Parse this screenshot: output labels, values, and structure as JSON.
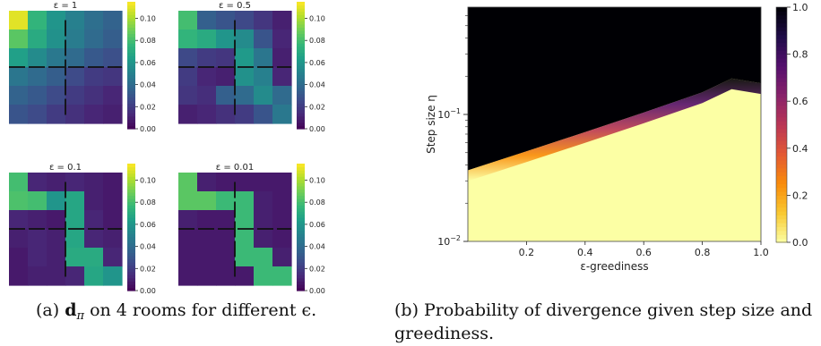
{
  "caption_a": {
    "prefix": "(a) ",
    "symbol": "d",
    "subscript": "π",
    "suffix": " on 4 rooms for different ϵ."
  },
  "caption_b": "(b) Probability of divergence given step size and greediness.",
  "chart_data": [
    {
      "type": "heatmap",
      "title": "ε = 1",
      "grid": [
        [
          0.11,
          0.075,
          0.06,
          0.05,
          0.042,
          0.036
        ],
        [
          0.085,
          0.07,
          0.058,
          0.048,
          0.04,
          0.034
        ],
        [
          0.065,
          0.055,
          0.046,
          0.04,
          0.032,
          0.028
        ],
        [
          0.045,
          0.04,
          0.034,
          0.026,
          0.02,
          0.018
        ],
        [
          0.036,
          0.032,
          0.026,
          0.02,
          0.016,
          0.012
        ],
        [
          0.03,
          0.026,
          0.02,
          0.016,
          0.012,
          0.01
        ]
      ],
      "colorbar": {
        "range": [
          0,
          0.115
        ],
        "ticks": [
          "0.00",
          "0.02",
          "0.04",
          "0.06",
          "0.08",
          "0.10"
        ]
      }
    },
    {
      "type": "heatmap",
      "title": "ε = 0.5",
      "grid": [
        [
          0.08,
          0.035,
          0.03,
          0.025,
          0.018,
          0.01
        ],
        [
          0.075,
          0.07,
          0.06,
          0.055,
          0.03,
          0.012
        ],
        [
          0.025,
          0.02,
          0.018,
          0.062,
          0.045,
          0.01
        ],
        [
          0.02,
          0.012,
          0.01,
          0.058,
          0.05,
          0.012
        ],
        [
          0.018,
          0.015,
          0.035,
          0.04,
          0.055,
          0.04
        ],
        [
          0.01,
          0.012,
          0.016,
          0.02,
          0.03,
          0.046
        ]
      ],
      "colorbar": {
        "range": [
          0,
          0.115
        ],
        "ticks": [
          "0.00",
          "0.02",
          "0.04",
          "0.06",
          "0.08",
          "0.10"
        ]
      }
    },
    {
      "type": "heatmap",
      "title": "ε = 0.1",
      "grid": [
        [
          0.08,
          0.012,
          0.01,
          0.012,
          0.01,
          0.008
        ],
        [
          0.082,
          0.08,
          0.06,
          0.068,
          0.01,
          0.008
        ],
        [
          0.012,
          0.01,
          0.008,
          0.068,
          0.012,
          0.008
        ],
        [
          0.01,
          0.012,
          0.01,
          0.068,
          0.012,
          0.01
        ],
        [
          0.008,
          0.012,
          0.01,
          0.07,
          0.07,
          0.012
        ],
        [
          0.008,
          0.01,
          0.01,
          0.012,
          0.068,
          0.06
        ]
      ],
      "colorbar": {
        "range": [
          0,
          0.115
        ],
        "ticks": [
          "0.00",
          "0.02",
          "0.04",
          "0.06",
          "0.08",
          "0.10"
        ]
      }
    },
    {
      "type": "heatmap",
      "title": "ε = 0.01",
      "grid": [
        [
          0.085,
          0.01,
          0.008,
          0.008,
          0.008,
          0.008
        ],
        [
          0.085,
          0.085,
          0.078,
          0.078,
          0.01,
          0.008
        ],
        [
          0.01,
          0.008,
          0.008,
          0.078,
          0.01,
          0.008
        ],
        [
          0.008,
          0.008,
          0.008,
          0.078,
          0.01,
          0.008
        ],
        [
          0.008,
          0.008,
          0.008,
          0.078,
          0.078,
          0.01
        ],
        [
          0.008,
          0.008,
          0.008,
          0.008,
          0.078,
          0.078
        ]
      ],
      "colorbar": {
        "range": [
          0,
          0.115
        ],
        "ticks": [
          "0.00",
          "0.02",
          "0.04",
          "0.06",
          "0.08",
          "0.10"
        ]
      }
    },
    {
      "type": "heatmap",
      "title": "",
      "xlabel": "ε-greediness",
      "ylabel": "Step size η",
      "xlim": [
        0,
        1.0
      ],
      "ylim": [
        0.01,
        0.7
      ],
      "yscale": "log",
      "x_ticks": [
        "0.2",
        "0.4",
        "0.6",
        "0.8",
        "1.0"
      ],
      "y_ticks": [
        "10−2",
        "10−1"
      ],
      "boundary": {
        "x": [
          0,
          0.2,
          0.4,
          0.6,
          0.8,
          0.9,
          1.0
        ],
        "eta": [
          0.034,
          0.048,
          0.068,
          0.097,
          0.14,
          0.18,
          0.165
        ]
      },
      "colormap": "inferno",
      "colorbar": {
        "range": [
          0,
          1.0
        ],
        "ticks": [
          "0.0",
          "0.2",
          "0.4",
          "0.6",
          "0.8",
          "1.0"
        ]
      }
    }
  ]
}
